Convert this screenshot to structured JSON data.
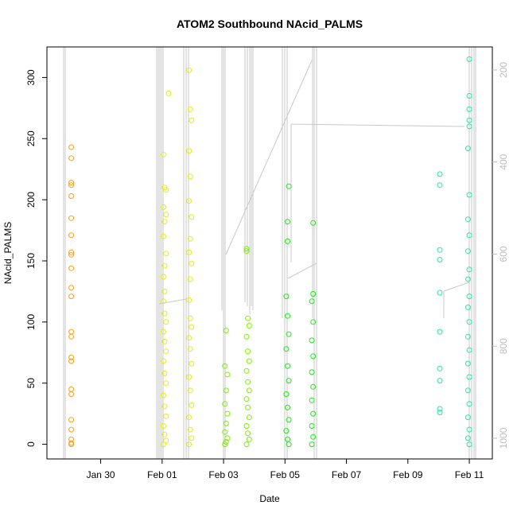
{
  "chart_data": {
    "type": "scatter",
    "title": "ATOM2 Southbound NAcid_PALMS",
    "xlabel": "Date",
    "ylabel": "NAcid_PALMS",
    "xlim": [
      "2017-01-28T06:00",
      "2017-02-11T18:00"
    ],
    "ylim": [
      -12,
      325
    ],
    "x_ticks": [
      {
        "date": "2017-01-30",
        "label": "Jan 30"
      },
      {
        "date": "2017-02-01",
        "label": "Feb 01"
      },
      {
        "date": "2017-02-03",
        "label": "Feb 03"
      },
      {
        "date": "2017-02-05",
        "label": "Feb 05"
      },
      {
        "date": "2017-02-07",
        "label": "Feb 07"
      },
      {
        "date": "2017-02-09",
        "label": "Feb 09"
      },
      {
        "date": "2017-02-11",
        "label": "Feb 11"
      }
    ],
    "y_ticks": [
      0,
      50,
      100,
      150,
      200,
      250,
      300
    ],
    "secondary_axis": {
      "label_color": "#bdbdbd",
      "ylim": [
        1045,
        150
      ],
      "ticks": [
        200,
        400,
        600,
        800,
        1000
      ]
    },
    "grid": false,
    "marker": "open-circle",
    "color_scale": [
      "#ff8c00",
      "#ffd700",
      "#ffff00",
      "#7fff00",
      "#00ff00",
      "#00fa9a",
      "#00ffd0"
    ],
    "series": [
      {
        "color": "#f4a11f",
        "points": [
          [
            "2017-01-29T01:00",
            243
          ],
          [
            "2017-01-29T01:00",
            234
          ],
          [
            "2017-01-29T01:00",
            214
          ],
          [
            "2017-01-29T01:00",
            212
          ],
          [
            "2017-01-29T01:00",
            203
          ],
          [
            "2017-01-29T01:00",
            185
          ],
          [
            "2017-01-29T01:00",
            171
          ],
          [
            "2017-01-29T01:00",
            157
          ],
          [
            "2017-01-29T01:00",
            155
          ],
          [
            "2017-01-29T01:00",
            144
          ],
          [
            "2017-01-29T01:00",
            128
          ],
          [
            "2017-01-29T01:00",
            121
          ],
          [
            "2017-01-29T01:00",
            92
          ],
          [
            "2017-01-29T01:00",
            88
          ],
          [
            "2017-01-29T01:00",
            71
          ],
          [
            "2017-01-29T01:00",
            68
          ],
          [
            "2017-01-29T01:00",
            45
          ],
          [
            "2017-01-29T01:00",
            41
          ],
          [
            "2017-01-29T01:00",
            20
          ],
          [
            "2017-01-29T01:00",
            12
          ],
          [
            "2017-01-29T01:00",
            4
          ],
          [
            "2017-01-29T01:00",
            1
          ],
          [
            "2017-01-29T01:00",
            0
          ]
        ]
      },
      {
        "color": "#e2ee10",
        "points": [
          [
            "2017-02-01T01:00",
            237
          ],
          [
            "2017-02-01T02:00",
            210
          ],
          [
            "2017-02-01T03:00",
            208
          ],
          [
            "2017-02-01T01:00",
            194
          ],
          [
            "2017-02-01T03:00",
            188
          ],
          [
            "2017-02-01T02:00",
            182
          ],
          [
            "2017-02-01T01:00",
            170
          ],
          [
            "2017-02-01T03:00",
            156
          ],
          [
            "2017-02-01T02:00",
            146
          ],
          [
            "2017-02-01T01:00",
            137
          ],
          [
            "2017-02-01T02:00",
            125
          ],
          [
            "2017-02-01T01:00",
            117
          ],
          [
            "2017-02-01T02:00",
            107
          ],
          [
            "2017-02-01T03:00",
            100
          ],
          [
            "2017-02-01T01:00",
            92
          ],
          [
            "2017-02-01T02:00",
            84
          ],
          [
            "2017-02-01T03:00",
            76
          ],
          [
            "2017-02-01T01:00",
            68
          ],
          [
            "2017-02-01T02:00",
            58
          ],
          [
            "2017-02-01T03:00",
            50
          ],
          [
            "2017-02-01T01:00",
            40
          ],
          [
            "2017-02-01T02:00",
            31
          ],
          [
            "2017-02-01T03:00",
            23
          ],
          [
            "2017-02-01T01:00",
            15
          ],
          [
            "2017-02-01T02:00",
            8
          ],
          [
            "2017-02-01T03:00",
            3
          ],
          [
            "2017-02-01T01:00",
            0
          ],
          [
            "2017-02-01T05:00",
            287
          ],
          [
            "2017-02-01T21:00",
            306
          ],
          [
            "2017-02-01T22:00",
            274
          ],
          [
            "2017-02-01T23:00",
            265
          ],
          [
            "2017-02-01T21:00",
            240
          ],
          [
            "2017-02-01T22:00",
            219
          ],
          [
            "2017-02-01T21:00",
            199
          ],
          [
            "2017-02-01T23:00",
            186
          ],
          [
            "2017-02-01T22:00",
            168
          ],
          [
            "2017-02-01T21:00",
            157
          ],
          [
            "2017-02-01T23:00",
            148
          ],
          [
            "2017-02-01T22:00",
            135
          ],
          [
            "2017-02-01T21:00",
            118
          ],
          [
            "2017-02-01T22:00",
            103
          ],
          [
            "2017-02-01T23:00",
            96
          ],
          [
            "2017-02-01T21:00",
            87
          ],
          [
            "2017-02-01T22:00",
            78
          ],
          [
            "2017-02-01T23:00",
            66
          ],
          [
            "2017-02-01T21:00",
            55
          ],
          [
            "2017-02-01T22:00",
            44
          ],
          [
            "2017-02-01T23:00",
            32
          ],
          [
            "2017-02-01T21:00",
            22
          ],
          [
            "2017-02-01T22:00",
            12
          ],
          [
            "2017-02-01T23:00",
            5
          ],
          [
            "2017-02-01T21:00",
            0
          ]
        ]
      },
      {
        "color": "#7ff000",
        "points": [
          [
            "2017-02-03T02:00",
            93
          ],
          [
            "2017-02-03T01:00",
            64
          ],
          [
            "2017-02-03T03:00",
            57
          ],
          [
            "2017-02-03T02:00",
            44
          ],
          [
            "2017-02-03T01:00",
            33
          ],
          [
            "2017-02-03T03:00",
            25
          ],
          [
            "2017-02-03T02:00",
            17
          ],
          [
            "2017-02-03T01:00",
            10
          ],
          [
            "2017-02-03T03:00",
            5
          ],
          [
            "2017-02-03T02:00",
            2
          ],
          [
            "2017-02-03T01:00",
            0
          ],
          [
            "2017-02-03T18:00",
            160
          ],
          [
            "2017-02-03T18:00",
            158
          ],
          [
            "2017-02-03T19:00",
            103
          ],
          [
            "2017-02-03T20:00",
            97
          ],
          [
            "2017-02-03T18:00",
            88
          ],
          [
            "2017-02-03T19:00",
            76
          ],
          [
            "2017-02-03T20:00",
            68
          ],
          [
            "2017-02-03T18:00",
            60
          ],
          [
            "2017-02-03T19:00",
            51
          ],
          [
            "2017-02-03T20:00",
            44
          ],
          [
            "2017-02-03T18:00",
            37
          ],
          [
            "2017-02-03T19:00",
            30
          ],
          [
            "2017-02-03T20:00",
            22
          ],
          [
            "2017-02-03T18:00",
            15
          ],
          [
            "2017-02-03T19:00",
            9
          ],
          [
            "2017-02-03T20:00",
            4
          ],
          [
            "2017-02-03T18:00",
            0
          ]
        ]
      },
      {
        "color": "#21e81a",
        "points": [
          [
            "2017-02-05T03:00",
            211
          ],
          [
            "2017-02-05T02:00",
            182
          ],
          [
            "2017-02-05T02:00",
            166
          ],
          [
            "2017-02-05T01:00",
            121
          ],
          [
            "2017-02-05T02:00",
            105
          ],
          [
            "2017-02-05T03:00",
            90
          ],
          [
            "2017-02-05T01:00",
            78
          ],
          [
            "2017-02-05T02:00",
            64
          ],
          [
            "2017-02-05T03:00",
            52
          ],
          [
            "2017-02-05T01:00",
            41
          ],
          [
            "2017-02-05T02:00",
            30
          ],
          [
            "2017-02-05T03:00",
            20
          ],
          [
            "2017-02-05T01:00",
            11
          ],
          [
            "2017-02-05T02:00",
            4
          ],
          [
            "2017-02-05T03:00",
            0
          ],
          [
            "2017-02-05T22:00",
            181
          ],
          [
            "2017-02-05T22:00",
            123
          ],
          [
            "2017-02-05T21:00",
            117
          ],
          [
            "2017-02-05T22:00",
            100
          ],
          [
            "2017-02-05T21:00",
            85
          ],
          [
            "2017-02-05T22:00",
            72
          ],
          [
            "2017-02-05T21:00",
            59
          ],
          [
            "2017-02-05T22:00",
            47
          ],
          [
            "2017-02-05T21:00",
            36
          ],
          [
            "2017-02-05T22:00",
            25
          ],
          [
            "2017-02-05T21:00",
            15
          ],
          [
            "2017-02-05T22:00",
            6
          ],
          [
            "2017-02-05T21:00",
            0
          ]
        ]
      },
      {
        "color": "#22e8a8",
        "points": [
          [
            "2017-02-10T01:00",
            221
          ],
          [
            "2017-02-10T01:00",
            212
          ],
          [
            "2017-02-10T01:00",
            159
          ],
          [
            "2017-02-10T01:00",
            151
          ],
          [
            "2017-02-10T01:00",
            124
          ],
          [
            "2017-02-10T01:00",
            92
          ],
          [
            "2017-02-10T01:00",
            62
          ],
          [
            "2017-02-10T01:00",
            52
          ],
          [
            "2017-02-10T01:00",
            29
          ],
          [
            "2017-02-10T01:00",
            26
          ],
          [
            "2017-02-11T00:00",
            315
          ],
          [
            "2017-02-11T00:00",
            285
          ],
          [
            "2017-02-11T00:00",
            274
          ],
          [
            "2017-02-11T00:00",
            265
          ],
          [
            "2017-02-11T00:00",
            260
          ],
          [
            "2017-02-10T23:00",
            242
          ],
          [
            "2017-02-11T00:00",
            204
          ],
          [
            "2017-02-10T23:00",
            184
          ],
          [
            "2017-02-11T00:00",
            171
          ],
          [
            "2017-02-10T23:00",
            158
          ],
          [
            "2017-02-11T00:00",
            143
          ],
          [
            "2017-02-10T23:00",
            135
          ],
          [
            "2017-02-11T00:00",
            121
          ],
          [
            "2017-02-10T23:00",
            112
          ],
          [
            "2017-02-11T00:00",
            100
          ],
          [
            "2017-02-10T23:00",
            88
          ],
          [
            "2017-02-11T00:00",
            77
          ],
          [
            "2017-02-10T23:00",
            66
          ],
          [
            "2017-02-11T00:00",
            55
          ],
          [
            "2017-02-10T23:00",
            44
          ],
          [
            "2017-02-11T00:00",
            33
          ],
          [
            "2017-02-10T23:00",
            22
          ],
          [
            "2017-02-11T00:00",
            12
          ],
          [
            "2017-02-10T23:00",
            5
          ],
          [
            "2017-02-11T00:00",
            0
          ]
        ]
      }
    ]
  }
}
